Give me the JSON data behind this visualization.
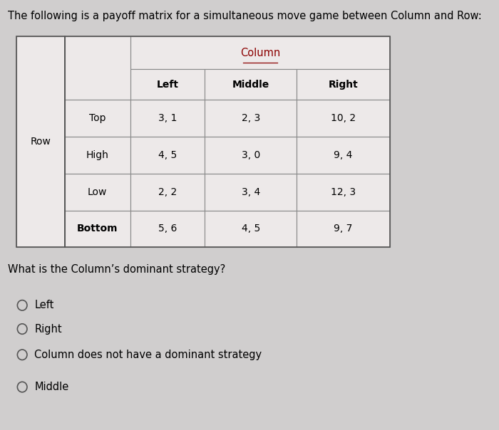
{
  "title": "The following is a payoff matrix for a simultaneous move game between Column and Row:",
  "title_fontsize": 10.5,
  "bg_color": "#d0cece",
  "cell_bg": "#ede9e9",
  "column_label": "Column",
  "row_label": "Row",
  "col_headers": [
    "Left",
    "Middle",
    "Right"
  ],
  "row_headers": [
    "Top",
    "High",
    "Low",
    "Bottom"
  ],
  "row_header_bold": [
    false,
    false,
    false,
    true
  ],
  "payoffs": [
    [
      "3, 1",
      "2, 3",
      "10, 2"
    ],
    [
      "4, 5",
      "3, 0",
      "9, 4"
    ],
    [
      "2, 2",
      "3, 4",
      "12, 3"
    ],
    [
      "5, 6",
      "4, 5",
      "9, 7"
    ]
  ],
  "question": "What is the Column’s dominant strategy?",
  "question_fontsize": 10.5,
  "options": [
    "Left",
    "Right",
    "Column does not have a dominant strategy",
    "Middle"
  ],
  "options_fontsize": 10.5
}
